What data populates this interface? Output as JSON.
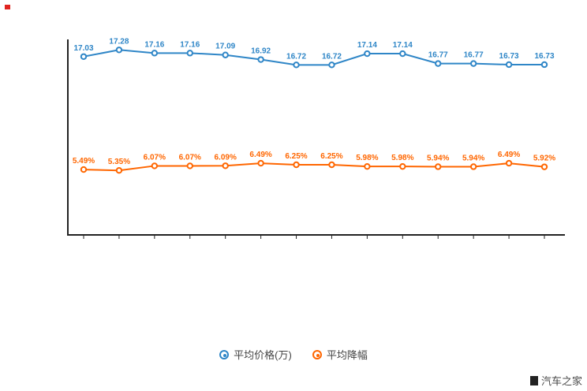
{
  "chart_data": {
    "type": "line",
    "title": "",
    "xlabel": "",
    "ylabel": "",
    "grid": false,
    "legend_position": "bottom",
    "x": [
      "",
      "",
      "",
      "",
      "",
      "",
      "",
      "",
      "",
      "",
      "",
      "",
      "",
      ""
    ],
    "series": [
      {
        "name": "平均价格(万)",
        "color": "#2f86c7",
        "unit": "万",
        "values": [
          17.03,
          17.28,
          17.16,
          17.16,
          17.09,
          16.92,
          16.72,
          16.72,
          17.14,
          17.14,
          16.77,
          16.77,
          16.73,
          16.73
        ],
        "labels": [
          "17.03",
          "17.28",
          "17.16",
          "17.16",
          "17.09",
          "16.92",
          "16.72",
          "16.72",
          "17.14",
          "17.14",
          "16.77",
          "16.77",
          "16.73",
          "16.73"
        ]
      },
      {
        "name": "平均降幅",
        "color": "#ff6600",
        "unit": "%",
        "values": [
          5.49,
          5.35,
          6.07,
          6.07,
          6.09,
          6.49,
          6.25,
          6.25,
          5.98,
          5.98,
          5.94,
          5.94,
          6.49,
          5.92
        ],
        "labels": [
          "5.49%",
          "5.35%",
          "6.07%",
          "6.07%",
          "6.09%",
          "6.49%",
          "6.25%",
          "6.25%",
          "5.98%",
          "5.98%",
          "5.94%",
          "5.94%",
          "6.49%",
          "5.92%"
        ]
      }
    ]
  },
  "watermark": "汽车之家",
  "colors": {
    "blue": "#2f86c7",
    "orange": "#ff6600",
    "axis": "#222222",
    "accent_corner": "#e02420"
  }
}
